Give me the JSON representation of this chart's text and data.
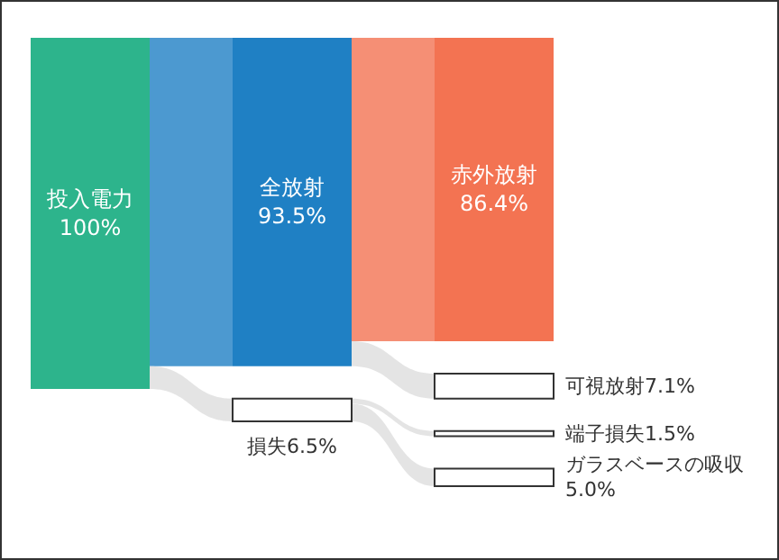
{
  "chart_data": {
    "type": "other",
    "categories": [
      "投入電力",
      "全放射",
      "赤外放射",
      "可視放射",
      "損失",
      "端子損失",
      "ガラスベースの吸収"
    ],
    "values": [
      100,
      93.5,
      86.4,
      7.1,
      6.5,
      1.5,
      5.0
    ],
    "value_labels": [
      "100%",
      "93.5%",
      "86.4%",
      "7.1%",
      "6.5%",
      "1.5%",
      "5.0%"
    ],
    "colors": [
      "#2db48c",
      "#1f80c4",
      "#f37352",
      "#ffffff",
      "#ffffff",
      "#ffffff",
      "#ffffff"
    ]
  }
}
